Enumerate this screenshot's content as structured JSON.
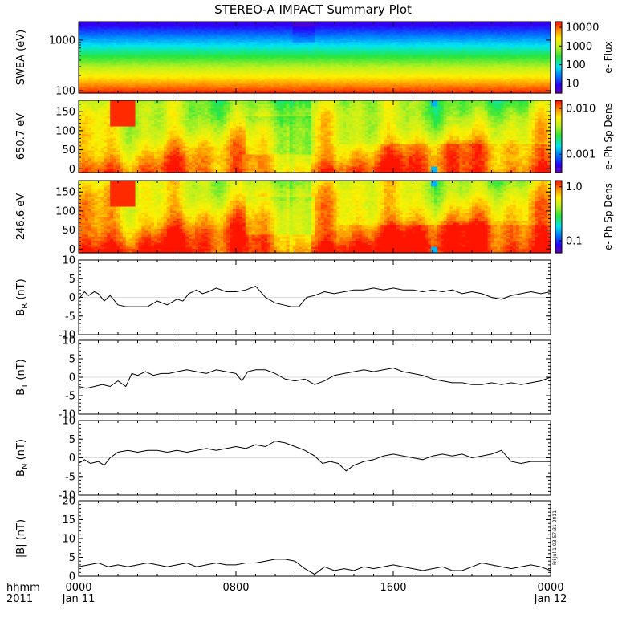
{
  "chart_data": {
    "type": "heatmap+line",
    "title": "STEREO-A IMPACT Summary Plot",
    "x_axis": {
      "range_hours": [
        0,
        24
      ],
      "ticks": [
        {
          "hour": 0,
          "top": "0000",
          "bottom": "Jan 11"
        },
        {
          "hour": 8,
          "top": "0800",
          "bottom": ""
        },
        {
          "hour": 16,
          "top": "1600",
          "bottom": ""
        },
        {
          "hour": 24,
          "top": "0000",
          "bottom": "Jan 12"
        }
      ],
      "left_label_top": "hhmm",
      "left_label_bottom": "2011"
    },
    "panels": [
      {
        "id": "swea",
        "kind": "spectrogram",
        "ylabel": "SWEA (eV)",
        "yscale": "log",
        "ylim": [
          90,
          2300
        ],
        "yticks": [
          "100",
          "1000"
        ],
        "colorbar": {
          "scale": "log",
          "range": [
            3,
            20000
          ],
          "ticks": [
            "10",
            "100",
            "1000",
            "10000"
          ],
          "label": "e- Flux"
        }
      },
      {
        "id": "pad650",
        "kind": "spectrogram",
        "ylabel": "650.7 eV",
        "yscale": "linear",
        "ylim": [
          -10,
          180
        ],
        "yticks": [
          "0",
          "50",
          "100",
          "150"
        ],
        "colorbar": {
          "scale": "log",
          "range": [
            0.0004,
            0.015
          ],
          "ticks": [
            "0.001",
            "0.010"
          ],
          "label": "e- Ph Sp Dens"
        }
      },
      {
        "id": "pad246",
        "kind": "spectrogram",
        "ylabel": "246.6 eV",
        "yscale": "linear",
        "ylim": [
          -10,
          180
        ],
        "yticks": [
          "0",
          "50",
          "100",
          "150"
        ],
        "colorbar": {
          "scale": "log",
          "range": [
            0.06,
            1.3
          ],
          "ticks": [
            "0.1",
            "1.0"
          ],
          "label": "e- Ph Sp Dens"
        }
      },
      {
        "id": "br",
        "kind": "line",
        "ylabel_main": "B",
        "ylabel_sub": "R",
        "ylabel_unit": " (nT)",
        "ylim": [
          -10,
          10
        ],
        "yticks": [
          "-10",
          "-5",
          "0",
          "5",
          "10"
        ],
        "series": {
          "x": [
            0,
            0.3,
            0.5,
            0.8,
            1.0,
            1.3,
            1.6,
            2.0,
            2.4,
            2.6,
            3.0,
            3.5,
            4.0,
            4.5,
            5.0,
            5.3,
            5.6,
            6.0,
            6.3,
            6.6,
            7.0,
            7.5,
            8.0,
            8.5,
            9.0,
            9.5,
            10.0,
            10.4,
            10.8,
            11.2,
            11.6,
            12.0,
            12.5,
            13.0,
            13.5,
            14.0,
            14.5,
            15.0,
            15.5,
            16.0,
            16.5,
            17.0,
            17.5,
            18.0,
            18.5,
            19.0,
            19.5,
            20.0,
            20.5,
            21.0,
            21.5,
            22.0,
            22.5,
            23.0,
            23.5,
            24.0
          ],
          "y": [
            -0.5,
            1.5,
            0.5,
            1.5,
            1.0,
            -1.0,
            0.5,
            -2.0,
            -2.5,
            -2.5,
            -2.5,
            -2.5,
            -1.0,
            -2.0,
            -0.5,
            -1.0,
            1.0,
            2.0,
            1.0,
            1.5,
            2.5,
            1.5,
            1.5,
            2.0,
            3.0,
            0.0,
            -1.5,
            -2.0,
            -2.5,
            -2.5,
            0.0,
            0.5,
            1.5,
            1.0,
            1.5,
            2.0,
            2.0,
            2.5,
            2.0,
            2.5,
            2.0,
            2.0,
            1.5,
            2.0,
            1.5,
            2.0,
            1.0,
            1.5,
            1.0,
            0.0,
            -0.5,
            0.5,
            1.0,
            1.5,
            1.0,
            1.5
          ]
        }
      },
      {
        "id": "bt",
        "kind": "line",
        "ylabel_main": "B",
        "ylabel_sub": "T",
        "ylabel_unit": " (nT)",
        "ylim": [
          -10,
          10
        ],
        "yticks": [
          "-10",
          "-5",
          "0",
          "5",
          "10"
        ],
        "series": {
          "x": [
            0,
            0.4,
            0.8,
            1.2,
            1.6,
            2.0,
            2.4,
            2.7,
            3.0,
            3.4,
            3.8,
            4.2,
            4.6,
            5.0,
            5.5,
            6.0,
            6.5,
            7.0,
            7.5,
            8.0,
            8.3,
            8.6,
            9.0,
            9.5,
            10.0,
            10.5,
            11.0,
            11.5,
            12.0,
            12.5,
            13.0,
            13.5,
            14.0,
            14.5,
            15.0,
            15.5,
            16.0,
            16.5,
            17.0,
            17.5,
            18.0,
            18.5,
            19.0,
            19.5,
            20.0,
            20.5,
            21.0,
            21.5,
            22.0,
            22.5,
            23.0,
            23.5,
            24.0
          ],
          "y": [
            -2.5,
            -3.0,
            -2.5,
            -2.0,
            -2.5,
            -1.0,
            -2.5,
            1.0,
            0.5,
            1.5,
            0.5,
            1.0,
            1.0,
            1.5,
            2.0,
            1.5,
            1.0,
            2.0,
            1.5,
            1.0,
            -1.0,
            1.5,
            2.0,
            2.0,
            1.0,
            -0.5,
            -1.0,
            -0.5,
            -2.0,
            -1.0,
            0.5,
            1.0,
            1.5,
            2.0,
            1.5,
            2.0,
            2.5,
            1.5,
            1.0,
            0.5,
            -0.5,
            -1.0,
            -1.5,
            -1.5,
            -2.0,
            -2.0,
            -1.5,
            -2.0,
            -1.5,
            -2.0,
            -1.5,
            -1.0,
            0.0
          ]
        }
      },
      {
        "id": "bn",
        "kind": "line",
        "ylabel_main": "B",
        "ylabel_sub": "N",
        "ylabel_unit": " (nT)",
        "ylim": [
          -10,
          10
        ],
        "yticks": [
          "-10",
          "-5",
          "0",
          "5",
          "10"
        ],
        "series": {
          "x": [
            0,
            0.3,
            0.6,
            1.0,
            1.3,
            1.6,
            2.0,
            2.5,
            3.0,
            3.5,
            4.0,
            4.5,
            5.0,
            5.5,
            6.0,
            6.5,
            7.0,
            7.5,
            8.0,
            8.5,
            9.0,
            9.5,
            10.0,
            10.5,
            11.0,
            11.5,
            12.0,
            12.4,
            12.8,
            13.2,
            13.6,
            14.0,
            14.5,
            15.0,
            15.5,
            16.0,
            16.5,
            17.0,
            17.5,
            18.0,
            18.5,
            19.0,
            19.5,
            20.0,
            20.5,
            21.0,
            21.5,
            22.0,
            22.5,
            23.0,
            23.5,
            24.0
          ],
          "y": [
            -1.5,
            -0.5,
            -1.5,
            -1.0,
            -2.0,
            0.0,
            1.5,
            2.0,
            1.5,
            2.0,
            2.0,
            1.5,
            2.0,
            1.5,
            2.0,
            2.5,
            2.0,
            2.5,
            3.0,
            2.5,
            3.5,
            3.0,
            4.5,
            4.0,
            3.0,
            2.0,
            0.5,
            -1.5,
            -1.0,
            -1.5,
            -3.5,
            -2.0,
            -1.0,
            -0.5,
            0.5,
            1.0,
            0.5,
            0.0,
            -0.5,
            0.5,
            1.0,
            0.5,
            1.0,
            0.0,
            0.5,
            1.0,
            2.0,
            -1.0,
            -1.5,
            -1.0,
            -1.0,
            -1.0
          ]
        }
      },
      {
        "id": "bmag",
        "kind": "line",
        "ylabel_main": "|B| (nT)",
        "ylabel_sub": "",
        "ylabel_unit": "",
        "ylim": [
          0,
          20
        ],
        "yticks": [
          "0",
          "5",
          "10",
          "15",
          "20"
        ],
        "series": {
          "x": [
            0,
            0.5,
            1.0,
            1.5,
            2.0,
            2.5,
            3.0,
            3.5,
            4.0,
            4.5,
            5.0,
            5.5,
            6.0,
            6.5,
            7.0,
            7.5,
            8.0,
            8.5,
            9.0,
            9.5,
            10.0,
            10.5,
            11.0,
            11.5,
            12.0,
            12.5,
            13.0,
            13.5,
            14.0,
            14.5,
            15.0,
            15.5,
            16.0,
            16.5,
            17.0,
            17.5,
            18.0,
            18.5,
            19.0,
            19.5,
            20.0,
            20.5,
            21.0,
            21.5,
            22.0,
            22.5,
            23.0,
            23.5,
            24.0
          ],
          "y": [
            2.5,
            3.0,
            3.5,
            2.5,
            3.0,
            2.5,
            3.0,
            3.5,
            3.0,
            2.5,
            3.0,
            3.5,
            2.5,
            3.0,
            3.5,
            3.0,
            3.0,
            3.5,
            3.5,
            4.0,
            4.5,
            4.5,
            4.0,
            2.0,
            0.5,
            2.5,
            1.5,
            2.0,
            1.5,
            2.5,
            2.0,
            2.5,
            3.0,
            2.5,
            2.0,
            1.5,
            2.0,
            2.5,
            1.5,
            1.5,
            2.5,
            3.5,
            3.0,
            2.5,
            2.0,
            2.5,
            3.0,
            2.5,
            1.5
          ]
        }
      }
    ],
    "stamp": "Fri Jul  1 03:57:31 2011"
  }
}
